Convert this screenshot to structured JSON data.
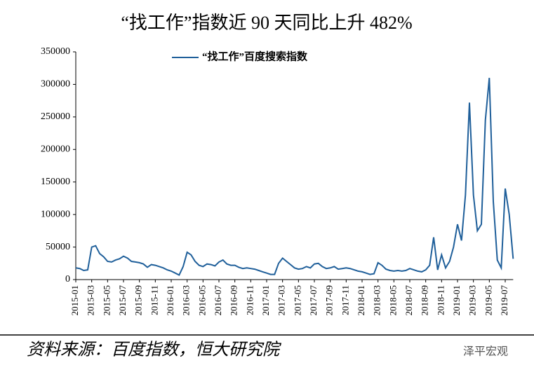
{
  "chart_data": {
    "type": "line",
    "title": "“找工作”指数近 90 天同比上升 482%",
    "source": "资料来源：百度指数，恒大研究院",
    "watermark": "泽平宏观",
    "categories": [
      "2015-01",
      null,
      null,
      null,
      "2015-03",
      null,
      null,
      null,
      "2015-05",
      null,
      null,
      null,
      "2015-07",
      null,
      null,
      null,
      "2015-09",
      null,
      null,
      null,
      "2015-11",
      null,
      null,
      null,
      "2016-01",
      null,
      null,
      null,
      "2016-03",
      null,
      null,
      null,
      "2016-05",
      null,
      null,
      null,
      "2016-07",
      null,
      null,
      null,
      "2016-09",
      null,
      null,
      null,
      "2016-11",
      null,
      null,
      null,
      "2017-01",
      null,
      null,
      null,
      "2017-03",
      null,
      null,
      null,
      "2017-05",
      null,
      null,
      null,
      "2017-07",
      null,
      null,
      null,
      "2017-09",
      null,
      null,
      null,
      "2017-11",
      null,
      null,
      null,
      "2018-01",
      null,
      null,
      null,
      "2018-03",
      null,
      null,
      null,
      "2018-05",
      null,
      null,
      null,
      "2018-07",
      null,
      null,
      null,
      "2018-09",
      null,
      null,
      null,
      "2018-11",
      null,
      null,
      null,
      "2019-01",
      null,
      null,
      null,
      "2019-03",
      null,
      null,
      null,
      "2019-05",
      null,
      null,
      null,
      "2019-07",
      null,
      null
    ],
    "series": [
      {
        "name": "“找工作”百度搜索指数",
        "color": "#1f5f9a",
        "values": [
          18000,
          17000,
          14000,
          15000,
          50000,
          52000,
          40000,
          35000,
          28000,
          27000,
          30000,
          32000,
          36000,
          33000,
          28000,
          27000,
          26000,
          24000,
          19000,
          23000,
          22000,
          20000,
          18000,
          15000,
          13000,
          10000,
          7000,
          20000,
          42000,
          38000,
          28000,
          22000,
          20000,
          24000,
          23000,
          21000,
          27000,
          30000,
          24000,
          22000,
          22000,
          19000,
          17000,
          18000,
          17000,
          16000,
          14000,
          12000,
          10000,
          8000,
          8000,
          25000,
          33000,
          28000,
          23000,
          18000,
          16000,
          17000,
          20000,
          18000,
          24000,
          25000,
          20000,
          17000,
          18000,
          20000,
          16000,
          17000,
          18000,
          17000,
          15000,
          13000,
          12000,
          10000,
          8000,
          9000,
          26000,
          22000,
          16000,
          14000,
          13000,
          14000,
          13000,
          14000,
          17000,
          15000,
          13000,
          12000,
          15000,
          22000,
          65000,
          15000,
          38000,
          18000,
          28000,
          50000,
          85000,
          60000,
          130000,
          272000,
          130000,
          75000,
          85000,
          245000,
          310000,
          120000,
          30000,
          18000,
          140000,
          100000,
          32000
        ]
      }
    ],
    "ylim": [
      0,
      350000
    ],
    "yticks": [
      0,
      50000,
      100000,
      150000,
      200000,
      250000,
      300000,
      350000
    ],
    "legend": "top"
  }
}
